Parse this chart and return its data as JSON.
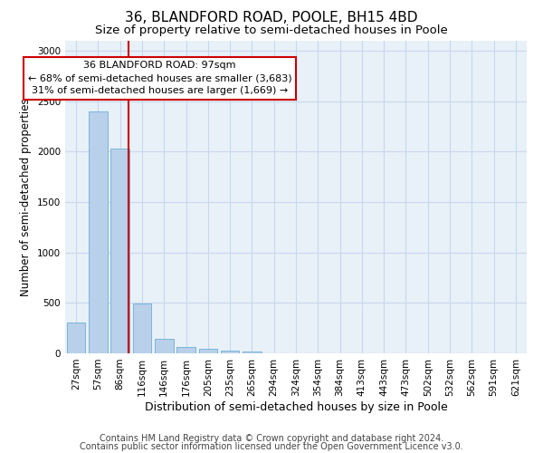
{
  "title1": "36, BLANDFORD ROAD, POOLE, BH15 4BD",
  "title2": "Size of property relative to semi-detached houses in Poole",
  "xlabel": "Distribution of semi-detached houses by size in Poole",
  "ylabel": "Number of semi-detached properties",
  "footnote1": "Contains HM Land Registry data © Crown copyright and database right 2024.",
  "footnote2": "Contains public sector information licensed under the Open Government Licence v3.0.",
  "annotation_title": "36 BLANDFORD ROAD: 97sqm",
  "annotation_line1": "← 68% of semi-detached houses are smaller (3,683)",
  "annotation_line2": "31% of semi-detached houses are larger (1,669) →",
  "bar_labels": [
    "27sqm",
    "57sqm",
    "86sqm",
    "116sqm",
    "146sqm",
    "176sqm",
    "205sqm",
    "235sqm",
    "265sqm",
    "294sqm",
    "324sqm",
    "354sqm",
    "384sqm",
    "413sqm",
    "443sqm",
    "473sqm",
    "502sqm",
    "532sqm",
    "562sqm",
    "591sqm",
    "621sqm"
  ],
  "bar_values": [
    305,
    2400,
    2030,
    490,
    145,
    65,
    42,
    30,
    15,
    0,
    0,
    0,
    0,
    0,
    0,
    0,
    0,
    0,
    0,
    0,
    0
  ],
  "bar_color": "#b8d0ea",
  "bar_edge_color": "#6baed6",
  "bar_width": 0.85,
  "ylim": [
    0,
    3100
  ],
  "yticks": [
    0,
    500,
    1000,
    1500,
    2000,
    2500,
    3000
  ],
  "property_line_color": "#cc0000",
  "annotation_box_color": "#ffffff",
  "annotation_box_edge": "#cc0000",
  "grid_color": "#c8d8ec",
  "bg_color": "#e8f0f8",
  "title1_fontsize": 11,
  "title2_fontsize": 9.5,
  "xlabel_fontsize": 9,
  "ylabel_fontsize": 8.5,
  "footnote_fontsize": 7,
  "tick_fontsize": 7.5,
  "annotation_fontsize": 8
}
